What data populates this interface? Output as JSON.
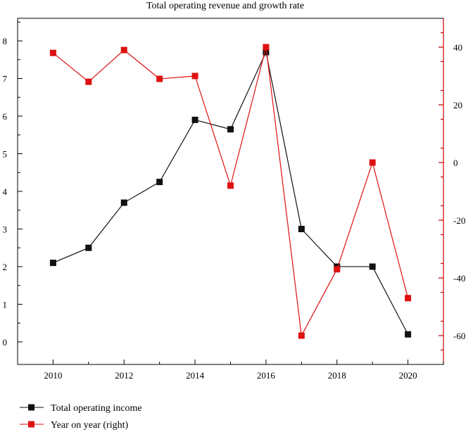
{
  "chart_data": {
    "type": "line",
    "title": "Total operating revenue and growth rate",
    "x": [
      2010,
      2011,
      2012,
      2013,
      2014,
      2015,
      2016,
      2017,
      2018,
      2019,
      2020
    ],
    "xlim": [
      2009,
      2021
    ],
    "xticks": [
      2010,
      2012,
      2014,
      2016,
      2018,
      2020
    ],
    "y_left": {
      "ylim": [
        -0.6,
        8.6
      ],
      "ticks": [
        0,
        1,
        2,
        3,
        4,
        5,
        6,
        7,
        8
      ]
    },
    "y_right": {
      "ylim": [
        -70,
        50
      ],
      "ticks": [
        40,
        20,
        0,
        -20,
        -40,
        -60
      ],
      "color": "#cc0000"
    },
    "series": [
      {
        "name": "Total operating income",
        "axis": "left",
        "color": "#111111",
        "values": [
          2.1,
          2.5,
          3.7,
          4.25,
          5.9,
          5.65,
          7.7,
          3.0,
          2.0,
          2.0,
          0.2
        ]
      },
      {
        "name": "Year on year (right)",
        "axis": "right",
        "color": "#dd1111",
        "values": [
          38,
          28,
          39,
          29,
          30,
          -8,
          40,
          -60,
          -37,
          0,
          -47
        ]
      }
    ],
    "legend_position": "bottom-left",
    "grid": false
  }
}
